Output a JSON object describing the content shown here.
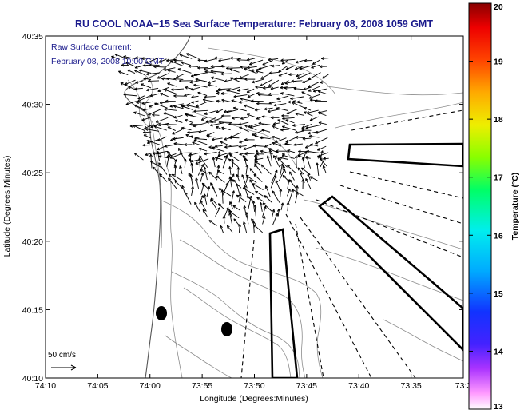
{
  "title": "RU COOL  NOAA−15  Sea Surface Temperature:  February 08, 2008 1059 GMT",
  "annotation": {
    "line1": "Raw Surface Current:",
    "line2": "February 08, 2008 10:00 GMT"
  },
  "scale_label": "50 cm/s",
  "xaxis": {
    "label": "Longitude (Degrees:Minutes)",
    "ticks": [
      "74:10",
      "74:05",
      "74:00",
      "73:55",
      "73:50",
      "73:45",
      "73:40",
      "73:35",
      "73:3"
    ]
  },
  "yaxis": {
    "label": "Latitude (Degrees:Minutes)",
    "ticks": [
      "40:35",
      "40:30",
      "40:25",
      "40:20",
      "40:15",
      "40:10"
    ]
  },
  "colorbar": {
    "label": "Temperature (°C)",
    "ticks": [
      "20",
      "19",
      "18",
      "17",
      "16",
      "15",
      "14",
      "13"
    ],
    "min": 13,
    "max": 20
  },
  "colors": {
    "title": "#1a1a8c",
    "contour": "#8c8c8c",
    "vector": "#000000"
  }
}
